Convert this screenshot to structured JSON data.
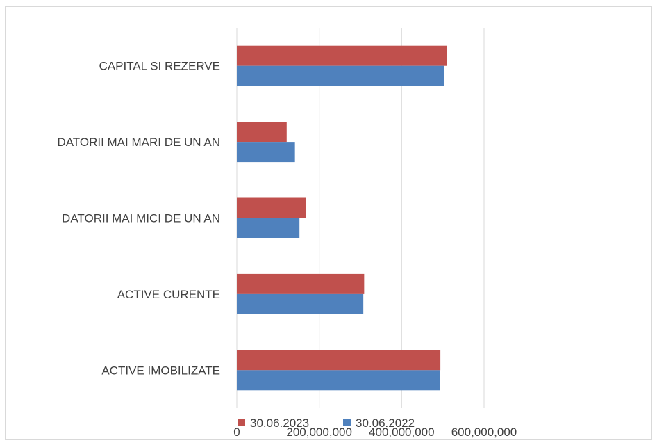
{
  "chart_data": {
    "type": "bar",
    "orientation": "horizontal",
    "categories": [
      "ACTIVE IMOBILIZATE",
      "ACTIVE CURENTE",
      "DATORII MAI MICI DE UN AN",
      "DATORII MAI MARI DE UN AN",
      "CAPITAL SI REZERVE"
    ],
    "series": [
      {
        "name": "30.06.2022",
        "color": "#4f81bd",
        "values": [
          493000000,
          307000000,
          152000000,
          141000000,
          503000000
        ]
      },
      {
        "name": "30.06.2023",
        "color": "#c0504d",
        "values": [
          494000000,
          309000000,
          168000000,
          121000000,
          510000000
        ]
      }
    ],
    "xlim": [
      0,
      600000000
    ],
    "xticks": [
      0,
      200000000,
      400000000,
      600000000
    ],
    "xtick_labels": [
      "0",
      "200,000,000",
      "400,000,000",
      "600,000,000"
    ],
    "grid": "vertical",
    "legend_position": "bottom",
    "legend_order": [
      "30.06.2023",
      "30.06.2022"
    ],
    "title": "",
    "xlabel": "",
    "ylabel": ""
  }
}
